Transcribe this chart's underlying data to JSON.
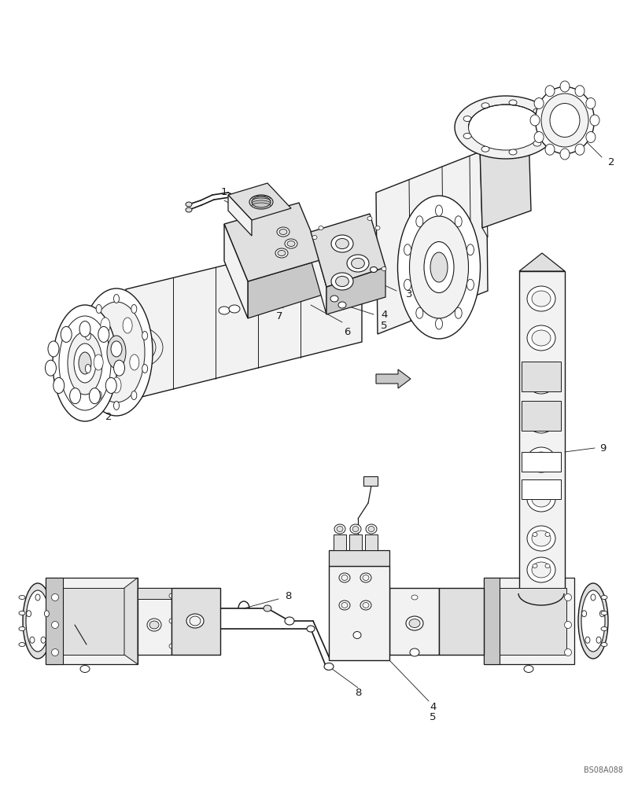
{
  "background_color": "#ffffff",
  "fig_width": 8.12,
  "fig_height": 10.0,
  "dpi": 100,
  "watermark": "BS08A088",
  "line_color": "#1a1a1a",
  "text_color": "#1a1a1a",
  "font_size": 9.5,
  "watermark_font_size": 7,
  "fill_light": "#f2f2f2",
  "fill_mid": "#e0e0e0",
  "fill_dark": "#c8c8c8",
  "fill_white": "#ffffff"
}
